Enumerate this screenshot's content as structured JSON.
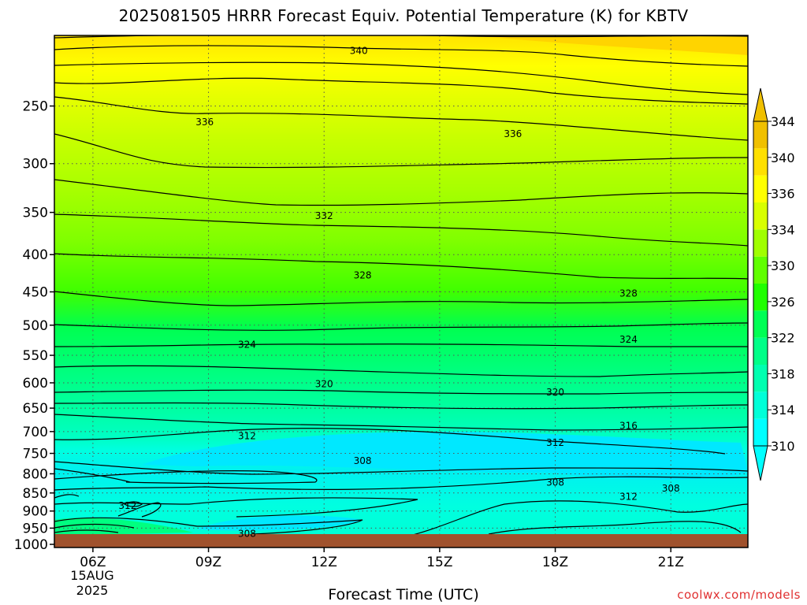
{
  "title": "2025081505 HRRR Forecast Equiv. Potential Temperature (K) for KBTV",
  "xlabel": "Forecast Time (UTC)",
  "credit": "coolwx.com/models",
  "date_label": [
    "15AUG",
    "2025"
  ],
  "chart_data": {
    "type": "heatmap",
    "title": "2025081505 HRRR Forecast Equiv. Potential Temperature (K) for KBTV",
    "xlabel": "Forecast Time (UTC)",
    "ylabel": "",
    "x_ticks": [
      "06Z",
      "09Z",
      "12Z",
      "15Z",
      "18Z",
      "21Z"
    ],
    "x_range_hours_utc": [
      5,
      23
    ],
    "y_ticks_hpa": [
      250,
      300,
      350,
      400,
      450,
      500,
      550,
      600,
      650,
      700,
      750,
      800,
      850,
      900,
      950,
      1000
    ],
    "y_range_hpa": [
      1010,
      200
    ],
    "y_scale": "log",
    "colorbar_ticks": [
      310,
      314,
      318,
      322,
      326,
      330,
      334,
      336,
      340,
      344
    ],
    "colorbar_extends": "both",
    "contour_labels": [
      {
        "value": 340,
        "time_utc": 12.9,
        "pressure_hpa": 210
      },
      {
        "value": 336,
        "time_utc": 8.9,
        "pressure_hpa": 263
      },
      {
        "value": 336,
        "time_utc": 16.9,
        "pressure_hpa": 273
      },
      {
        "value": 332,
        "time_utc": 12.0,
        "pressure_hpa": 354
      },
      {
        "value": 328,
        "time_utc": 13.0,
        "pressure_hpa": 427
      },
      {
        "value": 328,
        "time_utc": 19.9,
        "pressure_hpa": 452
      },
      {
        "value": 324,
        "time_utc": 10.0,
        "pressure_hpa": 532
      },
      {
        "value": 324,
        "time_utc": 19.9,
        "pressure_hpa": 523
      },
      {
        "value": 320,
        "time_utc": 12.0,
        "pressure_hpa": 602
      },
      {
        "value": 320,
        "time_utc": 18.0,
        "pressure_hpa": 618
      },
      {
        "value": 316,
        "time_utc": 19.9,
        "pressure_hpa": 687
      },
      {
        "value": 312,
        "time_utc": 10.0,
        "pressure_hpa": 710
      },
      {
        "value": 312,
        "time_utc": 18.0,
        "pressure_hpa": 725
      },
      {
        "value": 308,
        "time_utc": 13.0,
        "pressure_hpa": 768
      },
      {
        "value": 308,
        "time_utc": 18.0,
        "pressure_hpa": 822
      },
      {
        "value": 308,
        "time_utc": 21.0,
        "pressure_hpa": 838
      },
      {
        "value": 312,
        "time_utc": 19.9,
        "pressure_hpa": 860
      },
      {
        "value": 312,
        "time_utc": 6.9,
        "pressure_hpa": 885
      },
      {
        "value": 308,
        "time_utc": 10.0,
        "pressure_hpa": 967
      }
    ],
    "grid": "dotted",
    "ground_color": "#a0522d"
  },
  "colors": {
    "cb_bands": [
      "#00ffff",
      "#00ffd8",
      "#00ffb0",
      "#00ff88",
      "#00ff55",
      "#20ff00",
      "#60ff00",
      "#a0ff00",
      "#d8ff00",
      "#ffff00",
      "#ffe000",
      "#f0c000"
    ],
    "ground": "#a0522d"
  }
}
